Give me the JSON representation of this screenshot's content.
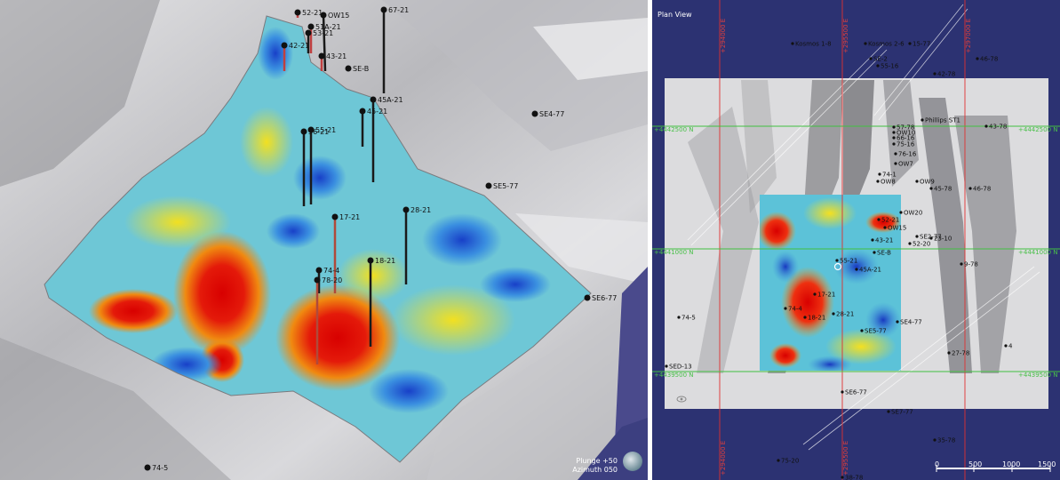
{
  "view3d": {
    "orientation": {
      "plunge": "Plunge +50",
      "azimuth": "Azimuth 050"
    },
    "holes": [
      {
        "label": "52-21"
      },
      {
        "label": "OW15"
      },
      {
        "label": "51A-21"
      },
      {
        "label": "53-21"
      },
      {
        "label": "67-21"
      },
      {
        "label": "42-21"
      },
      {
        "label": "43-21"
      },
      {
        "label": "SE-B"
      },
      {
        "label": "45A-21"
      },
      {
        "label": "45-21"
      },
      {
        "label": "SE4-77"
      },
      {
        "label": "55-21"
      },
      {
        "label": "56-21"
      },
      {
        "label": "SE5-77"
      },
      {
        "label": "28-21"
      },
      {
        "label": "17-21"
      },
      {
        "label": "18-21"
      },
      {
        "label": "74-4"
      },
      {
        "label": "78-20"
      },
      {
        "label": "SE6-77"
      },
      {
        "label": "74-5"
      }
    ]
  },
  "plan": {
    "title": "Plan View",
    "easting_labels": [
      "+294000 E",
      "+295500 E",
      "+297000 E"
    ],
    "northing_labels": [
      "+4442500 N",
      "+4441000 N",
      "+4439500 N"
    ],
    "scale": {
      "ticks": [
        "0",
        "500",
        "1000",
        "1500"
      ]
    },
    "holes": [
      {
        "label": "Kosmos 1-8"
      },
      {
        "label": "Kosmos 2-6"
      },
      {
        "label": "15-77"
      },
      {
        "label": "SE-2"
      },
      {
        "label": "55-16"
      },
      {
        "label": "42-78"
      },
      {
        "label": "46-78"
      },
      {
        "label": "Phillips ST1"
      },
      {
        "label": "43-78"
      },
      {
        "label": "57-78"
      },
      {
        "label": "OW10"
      },
      {
        "label": "66-16"
      },
      {
        "label": "75-16"
      },
      {
        "label": "76-16"
      },
      {
        "label": "OW7"
      },
      {
        "label": "74-1"
      },
      {
        "label": "OW8"
      },
      {
        "label": "OW9"
      },
      {
        "label": "45-78"
      },
      {
        "label": "46-78"
      },
      {
        "label": "OW20"
      },
      {
        "label": "52-21"
      },
      {
        "label": "OW15"
      },
      {
        "label": "SE2-77"
      },
      {
        "label": "23-10"
      },
      {
        "label": "43-21"
      },
      {
        "label": "SE-B"
      },
      {
        "label": "52-20"
      },
      {
        "label": "55-21"
      },
      {
        "label": "45A-21"
      },
      {
        "label": "9-78"
      },
      {
        "label": "17-21"
      },
      {
        "label": "74-4"
      },
      {
        "label": "18-21"
      },
      {
        "label": "28-21"
      },
      {
        "label": "SE4-77"
      },
      {
        "label": "SE5-77"
      },
      {
        "label": "74-5"
      },
      {
        "label": "27-78"
      },
      {
        "label": "4"
      },
      {
        "label": "SED-13"
      },
      {
        "label": "SE6-77"
      },
      {
        "label": "SE7-77"
      },
      {
        "label": "35-78"
      },
      {
        "label": "75-20"
      },
      {
        "label": "38-78"
      }
    ]
  }
}
